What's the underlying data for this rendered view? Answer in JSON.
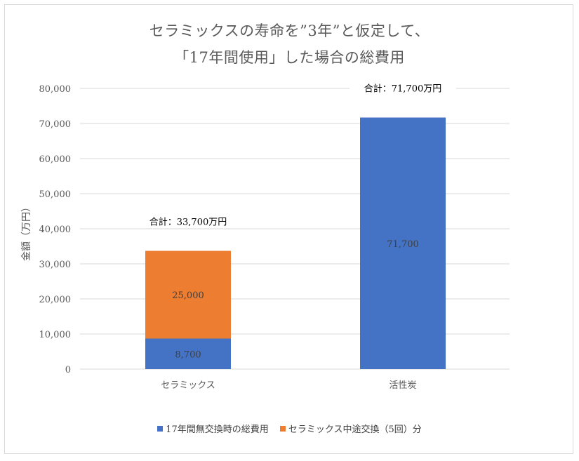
{
  "chart_data": {
    "type": "bar",
    "stacked": true,
    "title_line1": "セラミックスの寿命を”3年”と仮定して、",
    "title_line2": "「17年間使用」した場合の総費用",
    "ylabel": "金額（万円）",
    "xlabel": "",
    "ylim": [
      0,
      80000
    ],
    "yticks": [
      0,
      10000,
      20000,
      30000,
      40000,
      50000,
      60000,
      70000,
      80000
    ],
    "ytick_labels": [
      "0",
      "10,000",
      "20,000",
      "30,000",
      "40,000",
      "50,000",
      "60,000",
      "70,000",
      "80,000"
    ],
    "categories": [
      "セラミックス",
      "活性炭"
    ],
    "series": [
      {
        "name": "17年間無交換時の総費用",
        "color": "#4472c4",
        "values": [
          8700,
          71700
        ],
        "labels": [
          "8,700",
          "71,700"
        ]
      },
      {
        "name": "セラミックス中途交換（5回）分",
        "color": "#ed7d31",
        "values": [
          25000,
          0
        ],
        "labels": [
          "25,000",
          ""
        ]
      }
    ],
    "total_labels": [
      "合計：33,700万円",
      "合計：71,700万円"
    ],
    "grid": true,
    "legend_position": "bottom"
  }
}
